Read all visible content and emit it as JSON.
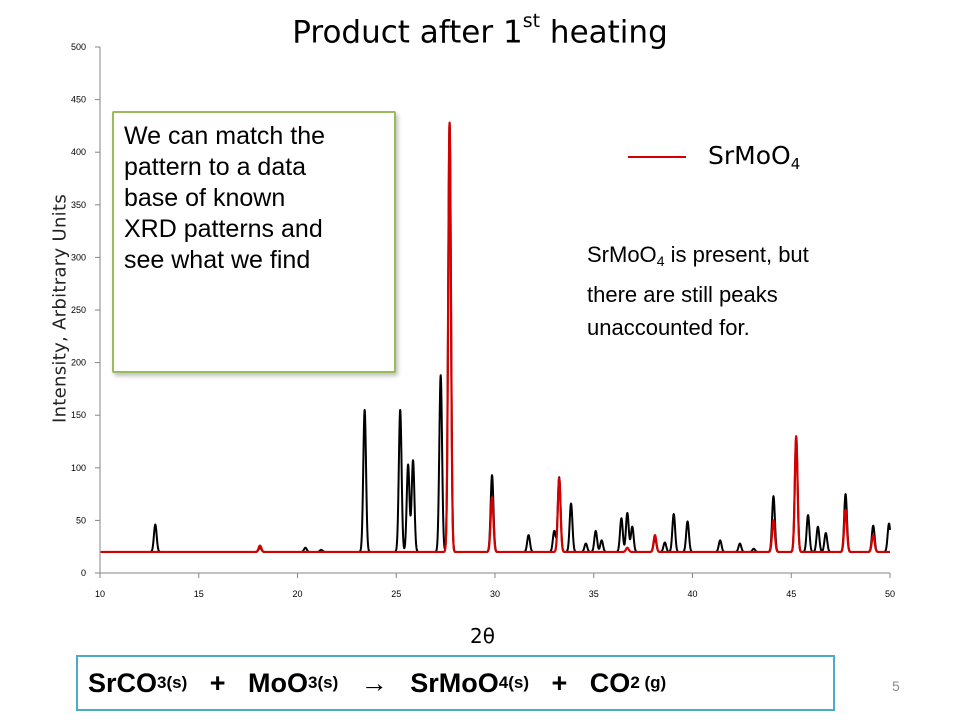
{
  "slide": {
    "title_main": "Product after 1",
    "title_sup": "st",
    "title_rest": " heating",
    "page_number": "5"
  },
  "callout": {
    "lines": [
      "We can match the",
      "pattern to a data",
      "base of known",
      "XRD patterns and",
      "see what we find"
    ]
  },
  "legend": {
    "label_main": "SrMoO",
    "label_sub": "4",
    "color": "#d40000"
  },
  "note": {
    "line1_main": "SrMoO",
    "line1_sub": "4",
    "line1_rest": " is present, but",
    "line2": "there are still peaks",
    "line3": "unaccounted for."
  },
  "equation": {
    "p1": "SrCO",
    "p1_sub": "3(s)",
    "p2": "   +   MoO",
    "p2_sub": "3(s)",
    "arrow": "   →   ",
    "p3": "SrMoO",
    "p3_sub": "4(s)",
    "p4": "   +   CO",
    "p4_sub": "2 (g)"
  },
  "chart_data": {
    "type": "line",
    "xlabel": "2θ",
    "ylabel": "Intensity, Arbitrary Units",
    "xlim": [
      10,
      50
    ],
    "ylim": [
      0,
      500
    ],
    "x_ticks": [
      10,
      15,
      20,
      25,
      30,
      35,
      40,
      45,
      50
    ],
    "y_ticks": [
      0,
      50,
      100,
      150,
      200,
      250,
      300,
      350,
      400,
      450,
      500
    ],
    "grid": false,
    "legend_position": "top-right",
    "series": [
      {
        "name": "",
        "color": "#000000",
        "baseline": 20,
        "peaks": [
          {
            "x": 12.8,
            "y": 46
          },
          {
            "x": 18.1,
            "y": 24
          },
          {
            "x": 20.4,
            "y": 24
          },
          {
            "x": 21.2,
            "y": 22
          },
          {
            "x": 23.4,
            "y": 155
          },
          {
            "x": 25.2,
            "y": 155
          },
          {
            "x": 25.6,
            "y": 103
          },
          {
            "x": 25.85,
            "y": 107
          },
          {
            "x": 27.25,
            "y": 188
          },
          {
            "x": 27.7,
            "y": 428
          },
          {
            "x": 29.85,
            "y": 93
          },
          {
            "x": 31.7,
            "y": 36
          },
          {
            "x": 33.0,
            "y": 40
          },
          {
            "x": 33.25,
            "y": 91
          },
          {
            "x": 33.85,
            "y": 66
          },
          {
            "x": 34.6,
            "y": 28
          },
          {
            "x": 35.1,
            "y": 40
          },
          {
            "x": 35.4,
            "y": 31
          },
          {
            "x": 36.4,
            "y": 52
          },
          {
            "x": 36.7,
            "y": 57
          },
          {
            "x": 36.95,
            "y": 44
          },
          {
            "x": 38.1,
            "y": 33
          },
          {
            "x": 38.6,
            "y": 29
          },
          {
            "x": 39.05,
            "y": 56
          },
          {
            "x": 39.75,
            "y": 49
          },
          {
            "x": 41.4,
            "y": 31
          },
          {
            "x": 42.4,
            "y": 28
          },
          {
            "x": 43.1,
            "y": 23
          },
          {
            "x": 44.1,
            "y": 73
          },
          {
            "x": 45.25,
            "y": 128
          },
          {
            "x": 45.85,
            "y": 55
          },
          {
            "x": 46.35,
            "y": 44
          },
          {
            "x": 46.75,
            "y": 38
          },
          {
            "x": 47.75,
            "y": 75
          },
          {
            "x": 49.15,
            "y": 45
          },
          {
            "x": 49.95,
            "y": 47
          }
        ]
      },
      {
        "name": "SrMoO4",
        "color": "#d40000",
        "baseline": 20,
        "peaks": [
          {
            "x": 18.1,
            "y": 26
          },
          {
            "x": 27.7,
            "y": 428
          },
          {
            "x": 29.85,
            "y": 72
          },
          {
            "x": 33.25,
            "y": 90
          },
          {
            "x": 36.7,
            "y": 24
          },
          {
            "x": 38.1,
            "y": 36
          },
          {
            "x": 44.1,
            "y": 50
          },
          {
            "x": 45.25,
            "y": 130
          },
          {
            "x": 47.75,
            "y": 60
          },
          {
            "x": 49.15,
            "y": 36
          }
        ]
      }
    ]
  }
}
